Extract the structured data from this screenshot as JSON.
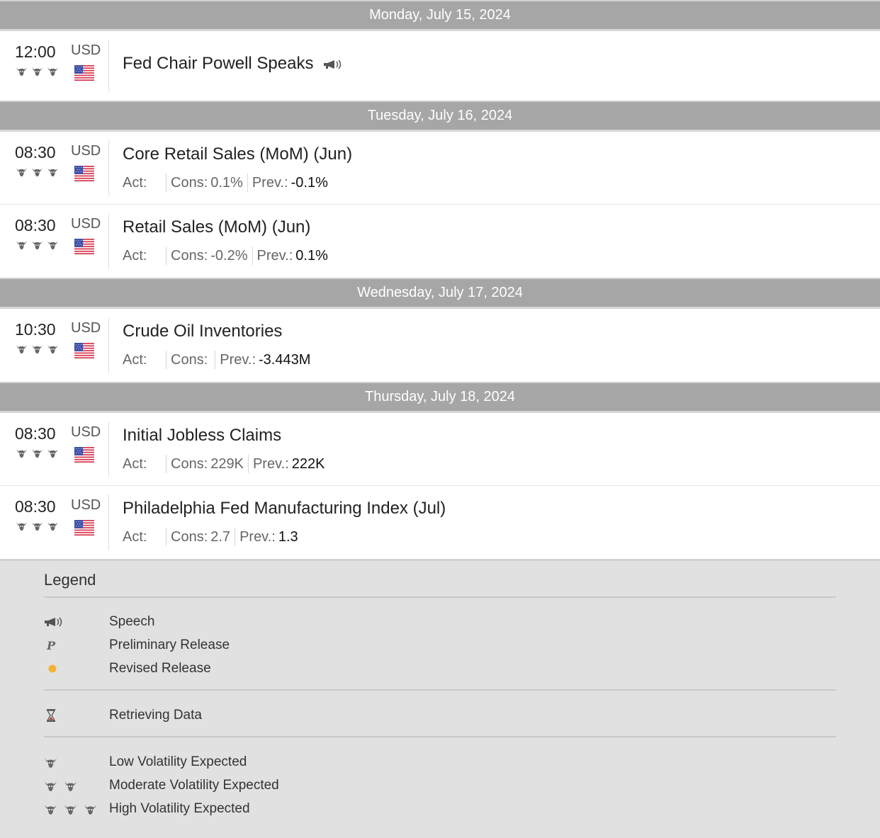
{
  "days": [
    {
      "date": "Monday, July 15, 2024",
      "events": [
        {
          "time": "12:00",
          "currency": "USD",
          "title": "Fed Chair Powell Speaks",
          "speech": true
        }
      ]
    },
    {
      "date": "Tuesday, July 16, 2024",
      "events": [
        {
          "time": "08:30",
          "currency": "USD",
          "title": "Core Retail Sales (MoM) (Jun)",
          "act_label": "Act:",
          "cons_label": "Cons:",
          "cons": "0.1%",
          "prev_label": "Prev.:",
          "prev": "-0.1%"
        },
        {
          "time": "08:30",
          "currency": "USD",
          "title": "Retail Sales (MoM) (Jun)",
          "act_label": "Act:",
          "cons_label": "Cons:",
          "cons": "-0.2%",
          "prev_label": "Prev.:",
          "prev": "0.1%"
        }
      ]
    },
    {
      "date": "Wednesday, July 17, 2024",
      "events": [
        {
          "time": "10:30",
          "currency": "USD",
          "title": "Crude Oil Inventories",
          "act_label": "Act:",
          "cons_label": "Cons:",
          "cons": "",
          "prev_label": "Prev.:",
          "prev": "-3.443M"
        }
      ]
    },
    {
      "date": "Thursday, July 18, 2024",
      "events": [
        {
          "time": "08:30",
          "currency": "USD",
          "title": "Initial Jobless Claims",
          "act_label": "Act:",
          "cons_label": "Cons:",
          "cons": "229K",
          "prev_label": "Prev.:",
          "prev": "222K"
        },
        {
          "time": "08:30",
          "currency": "USD",
          "title": "Philadelphia Fed Manufacturing Index (Jul)",
          "act_label": "Act:",
          "cons_label": "Cons:",
          "cons": "2.7",
          "prev_label": "Prev.:",
          "prev": "1.3"
        }
      ]
    }
  ],
  "volatility_per_event": 3,
  "legend": {
    "title": "Legend",
    "speech": "Speech",
    "preliminary": "Preliminary Release",
    "preliminary_glyph": "P",
    "revised": "Revised Release",
    "retrieving": "Retrieving Data",
    "low": "Low Volatility Expected",
    "moderate": "Moderate Volatility Expected",
    "high": "High Volatility Expected"
  },
  "colors": {
    "day_header_bg": "#a6a6a6",
    "legend_bg": "#e1e1e1",
    "revised_dot": "#f5b335",
    "bull_icon": "#666666"
  }
}
